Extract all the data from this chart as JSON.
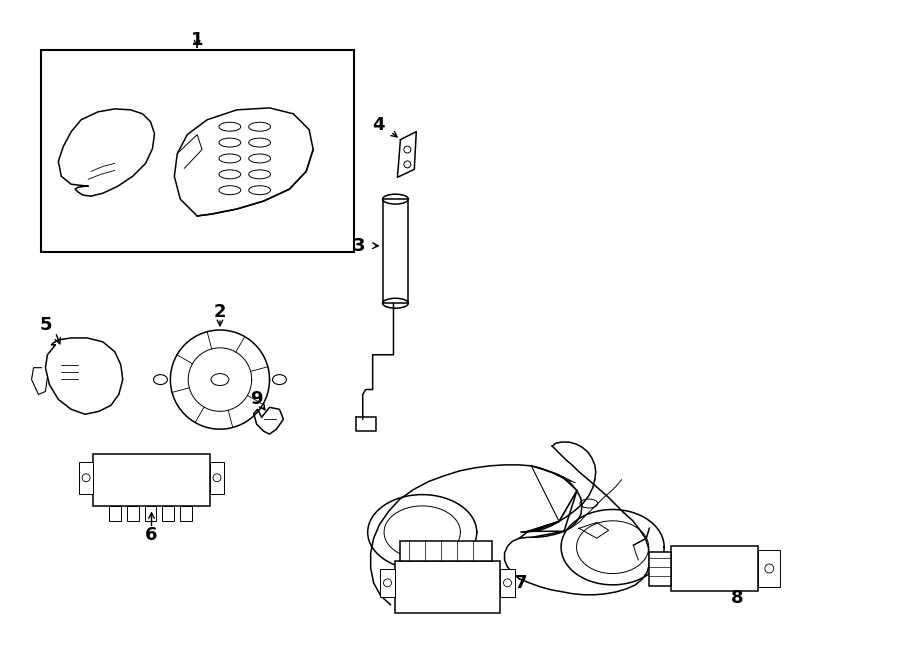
{
  "background_color": "#ffffff",
  "line_color": "#000000",
  "lw": 1.1,
  "fig_width": 9.0,
  "fig_height": 6.61,
  "dpi": 100
}
